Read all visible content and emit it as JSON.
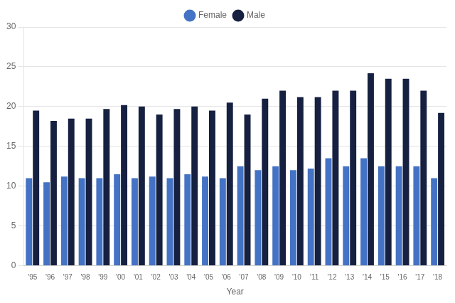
{
  "chart_data": {
    "type": "bar",
    "x_label": "Year",
    "categories": [
      "'95",
      "'96",
      "'97",
      "'98",
      "'99",
      "'00",
      "'01",
      "'02",
      "'03",
      "'04",
      "'05",
      "'06",
      "'07",
      "'08",
      "'09",
      "'10",
      "'11",
      "'12",
      "'13",
      "'14",
      "'15",
      "'16",
      "'17",
      "'18"
    ],
    "series": [
      {
        "name": "Female",
        "color": "#4472c4",
        "values": [
          11.0,
          10.5,
          11.2,
          11.0,
          11.0,
          11.5,
          11.0,
          11.2,
          11.0,
          11.5,
          11.2,
          11.0,
          12.5,
          12.0,
          12.5,
          12.0,
          12.2,
          13.5,
          12.5,
          13.5,
          12.5,
          12.5,
          12.5,
          11.0
        ]
      },
      {
        "name": "Male",
        "color": "#162040",
        "values": [
          19.5,
          18.2,
          18.5,
          18.5,
          19.7,
          20.2,
          20.0,
          19.0,
          19.7,
          20.0,
          19.5,
          20.5,
          19.0,
          21.0,
          22.0,
          21.2,
          21.2,
          22.0,
          22.0,
          24.2,
          23.5,
          23.5,
          22.0,
          19.2
        ]
      }
    ],
    "ylim": [
      0,
      30
    ],
    "yticks": [
      0,
      5,
      10,
      15,
      20,
      25,
      30
    ],
    "grid": true,
    "legend": "top"
  }
}
